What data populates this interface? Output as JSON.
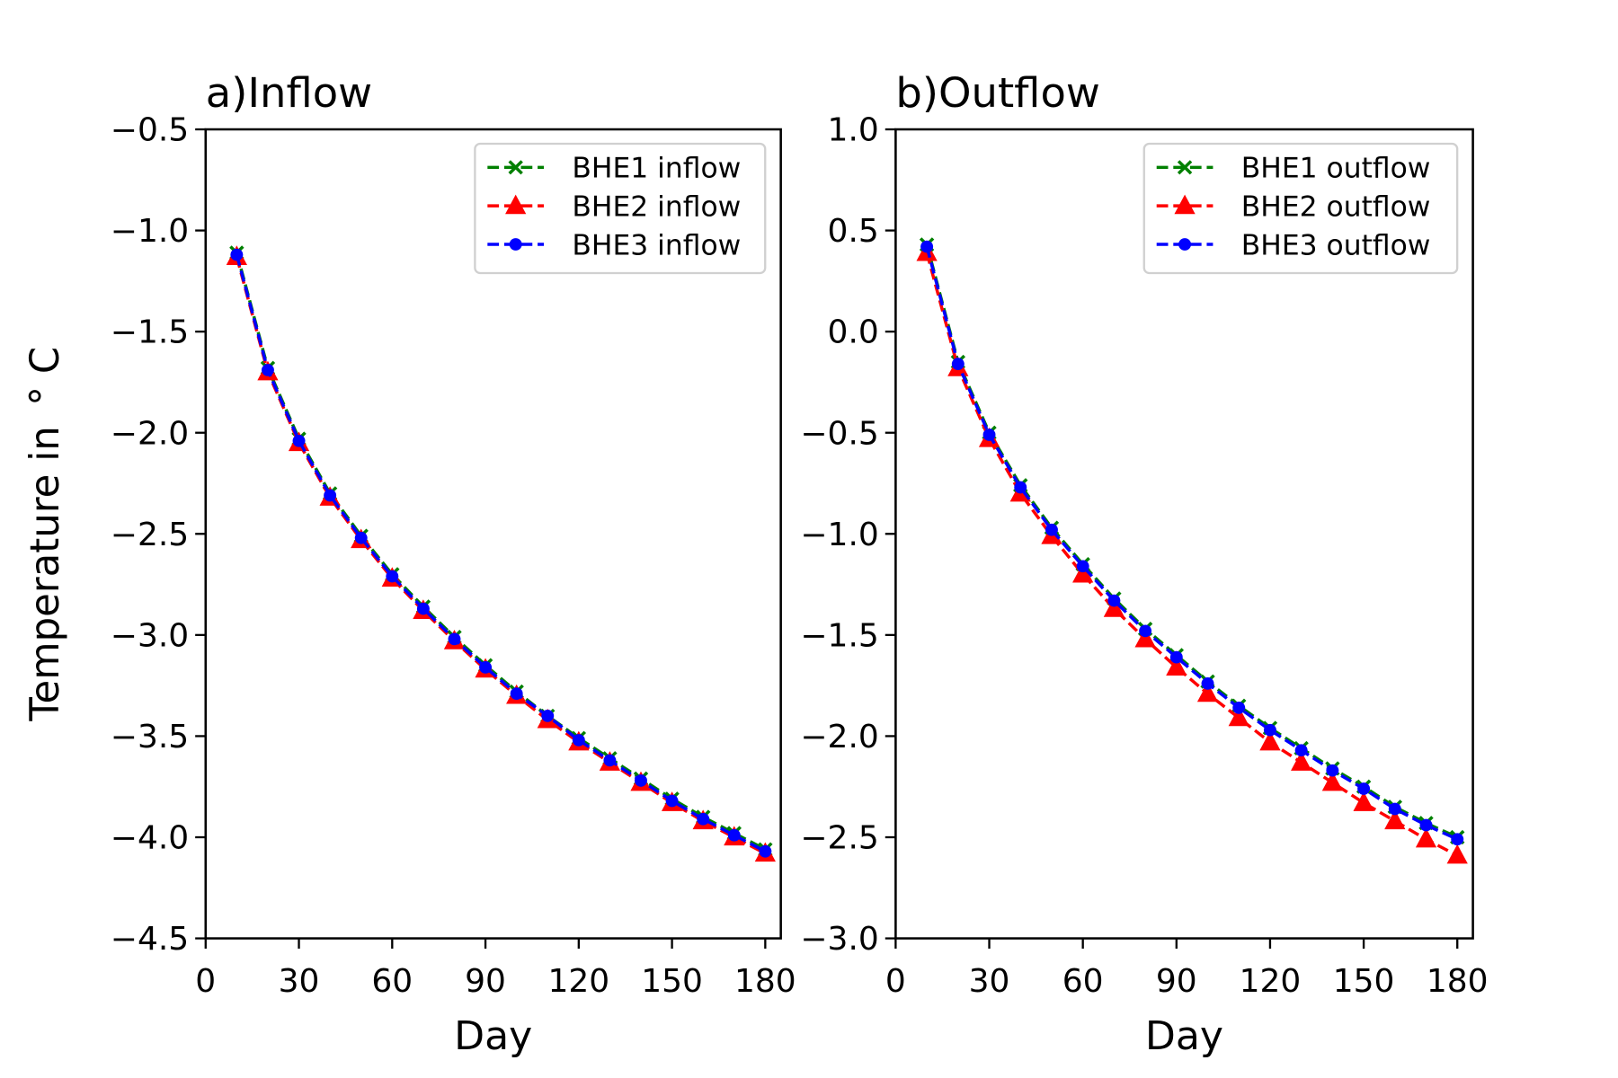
{
  "chart_data": [
    {
      "type": "line",
      "title": "a)Inflow",
      "xlabel": "Day",
      "ylabel": "Temperature in $^\\circ$C",
      "ylabel_display": "Temperature in  ° C",
      "xlim": [
        0,
        185
      ],
      "ylim": [
        -4.5,
        -0.5
      ],
      "xticks": [
        0,
        30,
        60,
        90,
        120,
        150,
        180
      ],
      "yticks": [
        -0.5,
        -1.0,
        -1.5,
        -2.0,
        -2.5,
        -3.0,
        -3.5,
        -4.0,
        -4.5
      ],
      "ytick_labels": [
        "−0.5",
        "−1.0",
        "−1.5",
        "−2.0",
        "−2.5",
        "−3.0",
        "−3.5",
        "−4.0",
        "−4.5"
      ],
      "grid": false,
      "legend_position": "upper-right",
      "x": [
        10,
        20,
        30,
        40,
        50,
        60,
        70,
        80,
        90,
        100,
        110,
        120,
        130,
        140,
        150,
        160,
        170,
        180
      ],
      "series": [
        {
          "name": "BHE1 inflow",
          "color": "#008000",
          "marker": "x",
          "linestyle": "dashed",
          "values": [
            -1.11,
            -1.68,
            -2.03,
            -2.3,
            -2.51,
            -2.7,
            -2.86,
            -3.01,
            -3.15,
            -3.28,
            -3.4,
            -3.51,
            -3.61,
            -3.71,
            -3.81,
            -3.9,
            -3.98,
            -4.06
          ]
        },
        {
          "name": "BHE2 inflow",
          "color": "#ff0000",
          "marker": "triangle",
          "linestyle": "dashed",
          "values": [
            -1.13,
            -1.7,
            -2.05,
            -2.32,
            -2.53,
            -2.72,
            -2.88,
            -3.03,
            -3.17,
            -3.3,
            -3.42,
            -3.53,
            -3.63,
            -3.73,
            -3.83,
            -3.92,
            -4.0,
            -4.08
          ]
        },
        {
          "name": "BHE3 inflow",
          "color": "#0000ff",
          "marker": "dot",
          "linestyle": "dashed",
          "values": [
            -1.12,
            -1.69,
            -2.04,
            -2.31,
            -2.52,
            -2.71,
            -2.87,
            -3.02,
            -3.16,
            -3.29,
            -3.4,
            -3.52,
            -3.62,
            -3.72,
            -3.82,
            -3.91,
            -3.99,
            -4.07
          ]
        }
      ]
    },
    {
      "type": "line",
      "title": "b)Outflow",
      "xlabel": "Day",
      "xlim": [
        0,
        185
      ],
      "ylim": [
        -3.0,
        1.0
      ],
      "xticks": [
        0,
        30,
        60,
        90,
        120,
        150,
        180
      ],
      "yticks": [
        1.0,
        0.5,
        0.0,
        -0.5,
        -1.0,
        -1.5,
        -2.0,
        -2.5,
        -3.0
      ],
      "ytick_labels": [
        "1.0",
        "0.5",
        "0.0",
        "−0.5",
        "−1.0",
        "−1.5",
        "−2.0",
        "−2.5",
        "−3.0"
      ],
      "grid": false,
      "legend_position": "upper-right",
      "x": [
        10,
        20,
        30,
        40,
        50,
        60,
        70,
        80,
        90,
        100,
        110,
        120,
        130,
        140,
        150,
        160,
        170,
        180
      ],
      "series": [
        {
          "name": "BHE1 outflow",
          "color": "#008000",
          "marker": "x",
          "linestyle": "dashed",
          "values": [
            0.43,
            -0.15,
            -0.5,
            -0.76,
            -0.97,
            -1.15,
            -1.32,
            -1.47,
            -1.6,
            -1.73,
            -1.85,
            -1.96,
            -2.06,
            -2.16,
            -2.25,
            -2.35,
            -2.43,
            -2.5
          ]
        },
        {
          "name": "BHE2 outflow",
          "color": "#ff0000",
          "marker": "triangle",
          "linestyle": "dashed",
          "values": [
            0.39,
            -0.18,
            -0.53,
            -0.8,
            -1.01,
            -1.2,
            -1.37,
            -1.52,
            -1.66,
            -1.79,
            -1.91,
            -2.03,
            -2.13,
            -2.23,
            -2.33,
            -2.42,
            -2.51,
            -2.59
          ]
        },
        {
          "name": "BHE3 outflow",
          "color": "#0000ff",
          "marker": "dot",
          "linestyle": "dashed",
          "values": [
            0.42,
            -0.16,
            -0.51,
            -0.77,
            -0.98,
            -1.16,
            -1.33,
            -1.48,
            -1.61,
            -1.74,
            -1.86,
            -1.97,
            -2.07,
            -2.17,
            -2.26,
            -2.36,
            -2.44,
            -2.51
          ]
        }
      ]
    }
  ]
}
